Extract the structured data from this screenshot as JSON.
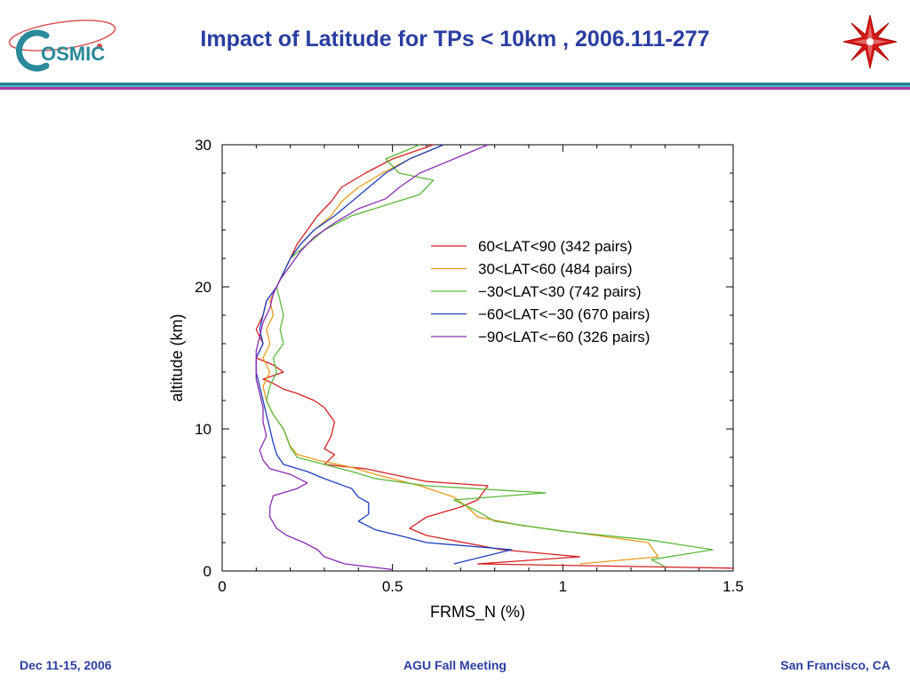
{
  "header": {
    "logo_text": "OSMIC",
    "title": "Impact of Latitude for TPs < 10km , 2006.111-277",
    "logo_left_icon": "cosmic-logo-icon",
    "logo_right_icon": "red-star-emblem-icon"
  },
  "footer": {
    "left": "Dec 11-15, 2006",
    "center": "AGU Fall Meeting",
    "right": "San Francisco, CA"
  },
  "colors": {
    "title": "#2a3ea0",
    "rule_dark": "#1f7f8f",
    "rule_light": "#4fb3c0",
    "rule_purple": "#a83aa0"
  },
  "chart_data": {
    "type": "line",
    "title": "",
    "xlabel": "FRMS_N (%)",
    "ylabel": "altitude (km)",
    "xlim": [
      0,
      1.5
    ],
    "ylim": [
      0,
      30
    ],
    "xticks": [
      0,
      0.5,
      1,
      1.5
    ],
    "xtick_labels": [
      "0",
      "0.5",
      "1",
      "1.5"
    ],
    "yticks": [
      0,
      10,
      20,
      30
    ],
    "ytick_labels": [
      "0",
      "10",
      "20",
      "30"
    ],
    "grid": false,
    "legend_position": "upper-right",
    "series": [
      {
        "name": "60<LAT<90 (342 pairs)",
        "color": "#d42020",
        "points": [
          [
            1.5,
            0.2
          ],
          [
            0.75,
            0.5
          ],
          [
            1.05,
            1
          ],
          [
            0.82,
            1.5
          ],
          [
            0.6,
            2.5
          ],
          [
            0.55,
            3
          ],
          [
            0.6,
            3.8
          ],
          [
            0.7,
            4.5
          ],
          [
            0.75,
            5
          ],
          [
            0.78,
            6
          ],
          [
            0.6,
            6.3
          ],
          [
            0.5,
            6.8
          ],
          [
            0.42,
            7.2
          ],
          [
            0.3,
            7.5
          ],
          [
            0.33,
            8.2
          ],
          [
            0.3,
            8.6
          ],
          [
            0.32,
            9.5
          ],
          [
            0.33,
            10.5
          ],
          [
            0.3,
            11.5
          ],
          [
            0.27,
            12
          ],
          [
            0.22,
            12.5
          ],
          [
            0.18,
            12.8
          ],
          [
            0.15,
            13.2
          ],
          [
            0.12,
            13.5
          ],
          [
            0.18,
            14
          ],
          [
            0.15,
            14.5
          ],
          [
            0.1,
            15
          ],
          [
            0.12,
            16
          ],
          [
            0.1,
            17
          ],
          [
            0.12,
            18
          ],
          [
            0.13,
            19
          ],
          [
            0.16,
            20
          ],
          [
            0.18,
            21
          ],
          [
            0.2,
            22
          ],
          [
            0.22,
            23
          ],
          [
            0.25,
            24
          ],
          [
            0.28,
            25
          ],
          [
            0.32,
            26
          ],
          [
            0.35,
            27
          ],
          [
            0.42,
            28
          ],
          [
            0.5,
            29
          ],
          [
            0.62,
            30
          ]
        ]
      },
      {
        "name": "30<LAT<60 (484 pairs)",
        "color": "#e89a1a",
        "points": [
          [
            1.05,
            0.5
          ],
          [
            1.28,
            1
          ],
          [
            1.25,
            2
          ],
          [
            1.1,
            2.5
          ],
          [
            0.88,
            3.2
          ],
          [
            0.75,
            3.8
          ],
          [
            0.72,
            4.5
          ],
          [
            0.68,
            5.2
          ],
          [
            0.58,
            6
          ],
          [
            0.45,
            6.8
          ],
          [
            0.38,
            7.3
          ],
          [
            0.28,
            7.8
          ],
          [
            0.22,
            8.2
          ],
          [
            0.2,
            8.8
          ],
          [
            0.18,
            10
          ],
          [
            0.15,
            11
          ],
          [
            0.13,
            12
          ],
          [
            0.12,
            13
          ],
          [
            0.14,
            14
          ],
          [
            0.12,
            15
          ],
          [
            0.14,
            16
          ],
          [
            0.13,
            17
          ],
          [
            0.15,
            18
          ],
          [
            0.14,
            19
          ],
          [
            0.16,
            20
          ],
          [
            0.18,
            21
          ],
          [
            0.2,
            22
          ],
          [
            0.23,
            23
          ],
          [
            0.27,
            24
          ],
          [
            0.32,
            25
          ],
          [
            0.35,
            26
          ],
          [
            0.4,
            27
          ],
          [
            0.47,
            28
          ],
          [
            0.55,
            29
          ],
          [
            0.65,
            30
          ]
        ]
      },
      {
        "name": "−30<LAT<30 (742 pairs)",
        "color": "#5ab83a",
        "points": [
          [
            1.3,
            0.3
          ],
          [
            1.26,
            0.8
          ],
          [
            1.44,
            1.5
          ],
          [
            1.25,
            2.2
          ],
          [
            1.0,
            2.8
          ],
          [
            0.8,
            3.5
          ],
          [
            0.75,
            4.2
          ],
          [
            0.68,
            5
          ],
          [
            0.95,
            5.5
          ],
          [
            0.6,
            6
          ],
          [
            0.45,
            6.5
          ],
          [
            0.38,
            7
          ],
          [
            0.3,
            7.5
          ],
          [
            0.22,
            8
          ],
          [
            0.2,
            8.7
          ],
          [
            0.18,
            10
          ],
          [
            0.15,
            11
          ],
          [
            0.13,
            12
          ],
          [
            0.14,
            13
          ],
          [
            0.16,
            14
          ],
          [
            0.15,
            15
          ],
          [
            0.18,
            16
          ],
          [
            0.17,
            17
          ],
          [
            0.18,
            18
          ],
          [
            0.17,
            19
          ],
          [
            0.16,
            20
          ],
          [
            0.18,
            21
          ],
          [
            0.2,
            22
          ],
          [
            0.25,
            23
          ],
          [
            0.3,
            24
          ],
          [
            0.38,
            25
          ],
          [
            0.58,
            26.5
          ],
          [
            0.62,
            27.5
          ],
          [
            0.52,
            28
          ],
          [
            0.48,
            29
          ],
          [
            0.58,
            30
          ]
        ]
      },
      {
        "name": "−60<LAT<−30 (670 pairs)",
        "color": "#1f3fbf",
        "points": [
          [
            0.68,
            0.5
          ],
          [
            0.85,
            1.5
          ],
          [
            0.6,
            2
          ],
          [
            0.52,
            2.5
          ],
          [
            0.45,
            2.9
          ],
          [
            0.4,
            3.5
          ],
          [
            0.43,
            4
          ],
          [
            0.43,
            4.8
          ],
          [
            0.4,
            5.2
          ],
          [
            0.38,
            5.8
          ],
          [
            0.3,
            6.5
          ],
          [
            0.25,
            7
          ],
          [
            0.18,
            7.5
          ],
          [
            0.16,
            8.2
          ],
          [
            0.15,
            9
          ],
          [
            0.14,
            10
          ],
          [
            0.13,
            11
          ],
          [
            0.12,
            12
          ],
          [
            0.11,
            13
          ],
          [
            0.1,
            14
          ],
          [
            0.1,
            15
          ],
          [
            0.12,
            16
          ],
          [
            0.11,
            17
          ],
          [
            0.12,
            18
          ],
          [
            0.13,
            19
          ],
          [
            0.16,
            20
          ],
          [
            0.18,
            21
          ],
          [
            0.2,
            22
          ],
          [
            0.23,
            23
          ],
          [
            0.27,
            24
          ],
          [
            0.33,
            25
          ],
          [
            0.38,
            26
          ],
          [
            0.43,
            27
          ],
          [
            0.48,
            28
          ],
          [
            0.55,
            29
          ],
          [
            0.65,
            30
          ]
        ]
      },
      {
        "name": "−90<LAT<−60 (326 pairs)",
        "color": "#8a2ab0",
        "points": [
          [
            0.5,
            0.1
          ],
          [
            0.36,
            0.5
          ],
          [
            0.3,
            1
          ],
          [
            0.28,
            1.5
          ],
          [
            0.24,
            2
          ],
          [
            0.19,
            2.5
          ],
          [
            0.16,
            3
          ],
          [
            0.14,
            3.8
          ],
          [
            0.14,
            4.5
          ],
          [
            0.15,
            5.3
          ],
          [
            0.22,
            5.8
          ],
          [
            0.25,
            6.2
          ],
          [
            0.2,
            6.8
          ],
          [
            0.14,
            7.2
          ],
          [
            0.12,
            7.8
          ],
          [
            0.11,
            8.5
          ],
          [
            0.13,
            9.5
          ],
          [
            0.12,
            10.5
          ],
          [
            0.12,
            11.5
          ],
          [
            0.11,
            12.5
          ],
          [
            0.1,
            13.5
          ],
          [
            0.1,
            14.5
          ],
          [
            0.1,
            15.5
          ],
          [
            0.11,
            16.5
          ],
          [
            0.12,
            17.5
          ],
          [
            0.14,
            18.5
          ],
          [
            0.15,
            19.5
          ],
          [
            0.17,
            20.5
          ],
          [
            0.2,
            21.5
          ],
          [
            0.23,
            22.5
          ],
          [
            0.27,
            23.5
          ],
          [
            0.33,
            24.5
          ],
          [
            0.4,
            25.5
          ],
          [
            0.48,
            26.2
          ],
          [
            0.52,
            27
          ],
          [
            0.58,
            28
          ],
          [
            0.68,
            29
          ],
          [
            0.78,
            30
          ]
        ]
      }
    ]
  }
}
